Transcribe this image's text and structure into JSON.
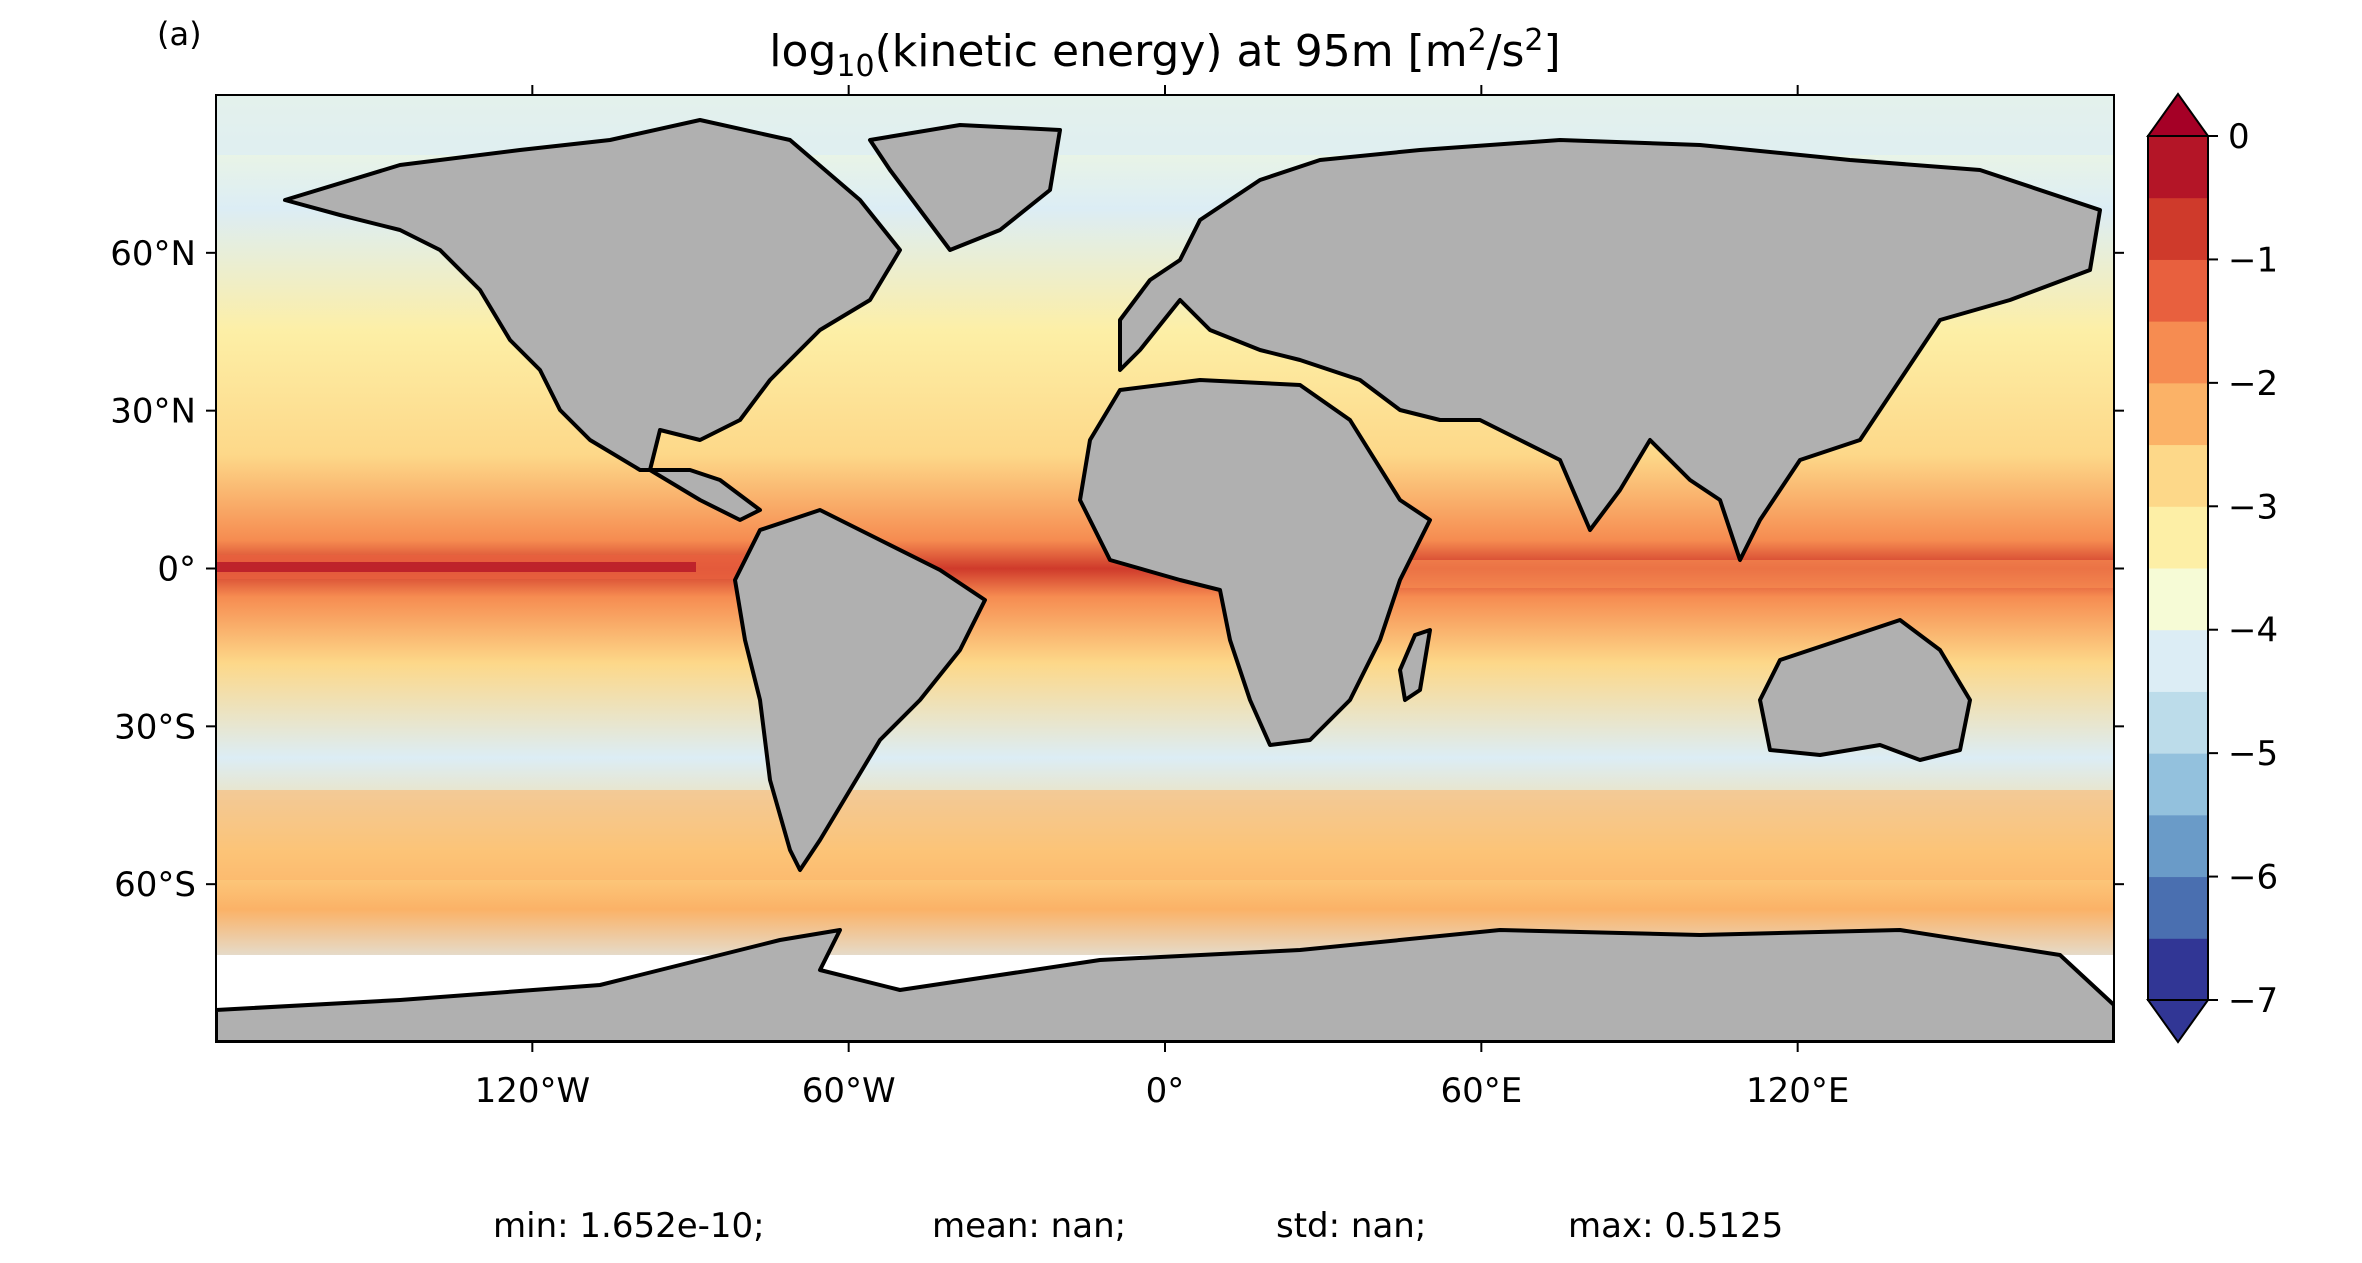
{
  "panel_label": "(a)",
  "title": {
    "prefix": "log",
    "subscript": "10",
    "middle": "(kinetic energy) at 95m [m",
    "superscript": "2",
    "middle2": "/s",
    "superscript2": "2",
    "suffix": "]"
  },
  "map": {
    "projection": "PlateCarree",
    "lon_range": [
      -180,
      180
    ],
    "lat_range": [
      -90,
      90
    ],
    "land_color": "#b0b0b0",
    "coastline_color": "#000000",
    "ice_color": "#ffffff"
  },
  "axes": {
    "lat_ticks": [
      {
        "value": 60,
        "label": "60°N"
      },
      {
        "value": 30,
        "label": "30°N"
      },
      {
        "value": 0,
        "label": "0°"
      },
      {
        "value": -30,
        "label": "30°S"
      },
      {
        "value": -60,
        "label": "60°S"
      }
    ],
    "lon_ticks": [
      {
        "value": -120,
        "label": "120°W"
      },
      {
        "value": -60,
        "label": "60°W"
      },
      {
        "value": 0,
        "label": "0°"
      },
      {
        "value": 60,
        "label": "60°E"
      },
      {
        "value": 120,
        "label": "120°E"
      }
    ]
  },
  "colorbar": {
    "min": -7,
    "max": 0,
    "extend": "both",
    "levels": [
      -7,
      -6.5,
      -6,
      -5.5,
      -5,
      -4.5,
      -4,
      -3.5,
      -3,
      -2.5,
      -2,
      -1.5,
      -1,
      -0.5,
      0
    ],
    "colors": [
      "#313695",
      "#4a6fb0",
      "#6a9bc8",
      "#93c1dd",
      "#bcdcea",
      "#dcedf5",
      "#f6fbd6",
      "#fdefa6",
      "#fdd889",
      "#fbb267",
      "#f68c51",
      "#e8603e",
      "#cf3a2b",
      "#b41527"
    ],
    "under_color": "#313695",
    "over_color": "#a50026",
    "ticks": [
      {
        "value": 0,
        "label": "0"
      },
      {
        "value": -1,
        "label": "−1"
      },
      {
        "value": -2,
        "label": "−2"
      },
      {
        "value": -3,
        "label": "−3"
      },
      {
        "value": -4,
        "label": "−4"
      },
      {
        "value": -5,
        "label": "−5"
      },
      {
        "value": -6,
        "label": "−6"
      },
      {
        "value": -7,
        "label": "−7"
      }
    ]
  },
  "stats": {
    "min": "min: 1.652e-10;",
    "mean": "mean: nan;",
    "std": "std: nan;",
    "max": "max: 0.5125"
  }
}
